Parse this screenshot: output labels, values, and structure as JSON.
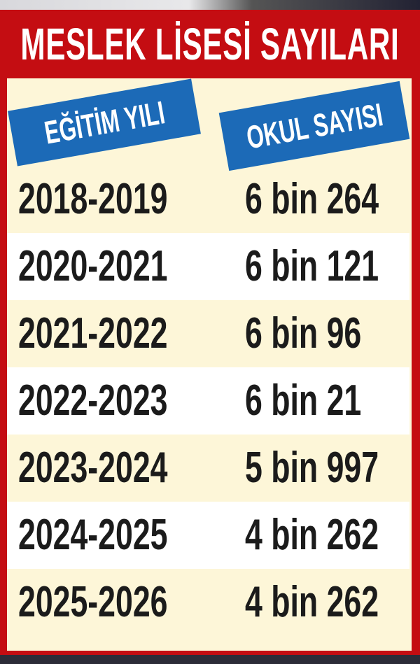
{
  "chart_data": {
    "type": "table",
    "title": "MESLEK LİSESİ SAYILARI",
    "columns": [
      "EĞİTİM YILI",
      "OKUL SAYISI"
    ],
    "rows": [
      [
        "2018-2019",
        "6 bin 264"
      ],
      [
        "2020-2021",
        "6 bin 121"
      ],
      [
        "2021-2022",
        "6 bin 96"
      ],
      [
        "2022-2023",
        "6 bin 21"
      ],
      [
        "2023-2024",
        "5 bin 997"
      ],
      [
        "2024-2025",
        "4 bin 262"
      ],
      [
        "2025-2026",
        "4 bin 262"
      ]
    ],
    "values": [
      6264,
      6121,
      6096,
      6021,
      5997,
      4262,
      4262
    ]
  },
  "colors": {
    "frame": "#c40d12",
    "header_badge": "#1c6ab7",
    "body": "#fdf6d8",
    "alt_row": "#ffffff"
  }
}
